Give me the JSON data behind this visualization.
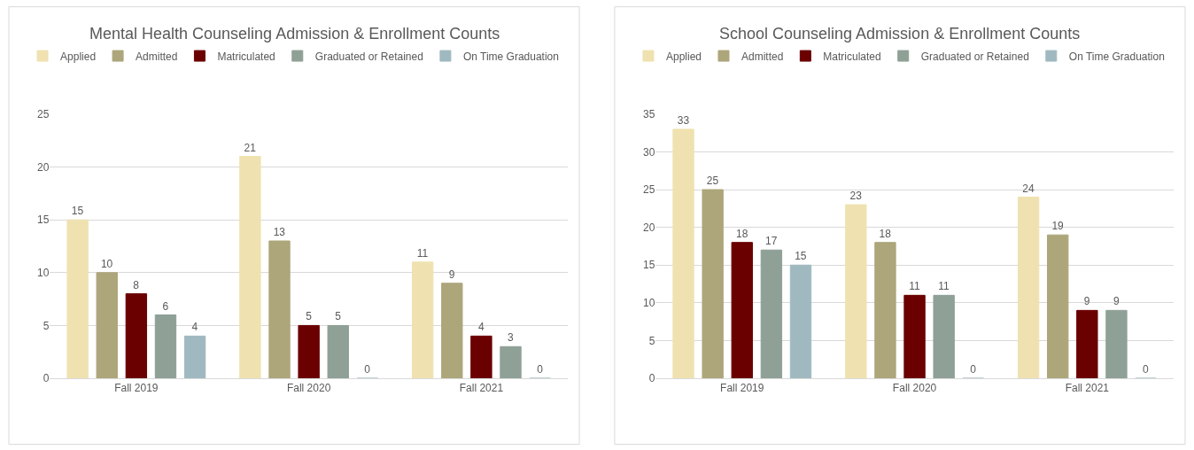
{
  "chart_data": [
    {
      "type": "bar",
      "title": "Mental Health Counseling Admission & Enrollment Counts",
      "categories": [
        "Fall 2019",
        "Fall 2020",
        "Fall 2021"
      ],
      "series": [
        {
          "name": "Applied",
          "color": "#efe2b0",
          "values": [
            15,
            21,
            11
          ]
        },
        {
          "name": "Admitted",
          "color": "#ada67b",
          "values": [
            10,
            13,
            9
          ]
        },
        {
          "name": "Matriculated",
          "color": "#6b0000",
          "values": [
            8,
            5,
            4
          ]
        },
        {
          "name": "Graduated or Retained",
          "color": "#8fa096",
          "values": [
            6,
            5,
            3
          ]
        },
        {
          "name": "On Time Graduation",
          "color": "#a0b9c0",
          "values": [
            4,
            0,
            0
          ]
        }
      ],
      "ylim": [
        0,
        25
      ],
      "yticks": [
        0,
        5,
        10,
        15,
        20,
        25
      ],
      "grid": "y",
      "legend": "top",
      "data_labels": true
    },
    {
      "type": "bar",
      "title": "School Counseling Admission & Enrollment Counts",
      "categories": [
        "Fall 2019",
        "Fall 2020",
        "Fall 2021"
      ],
      "series": [
        {
          "name": "Applied",
          "color": "#efe2b0",
          "values": [
            33,
            23,
            24
          ]
        },
        {
          "name": "Admitted",
          "color": "#ada67b",
          "values": [
            25,
            18,
            19
          ]
        },
        {
          "name": "Matriculated",
          "color": "#6b0000",
          "values": [
            18,
            11,
            9
          ]
        },
        {
          "name": "Graduated or Retained",
          "color": "#8fa096",
          "values": [
            17,
            11,
            9
          ]
        },
        {
          "name": "On Time Graduation",
          "color": "#a0b9c0",
          "values": [
            15,
            0,
            0
          ]
        }
      ],
      "ylim": [
        0,
        35
      ],
      "yticks": [
        0,
        5,
        10,
        15,
        20,
        25,
        30,
        35
      ],
      "grid": "y",
      "legend": "top",
      "data_labels": true
    }
  ]
}
